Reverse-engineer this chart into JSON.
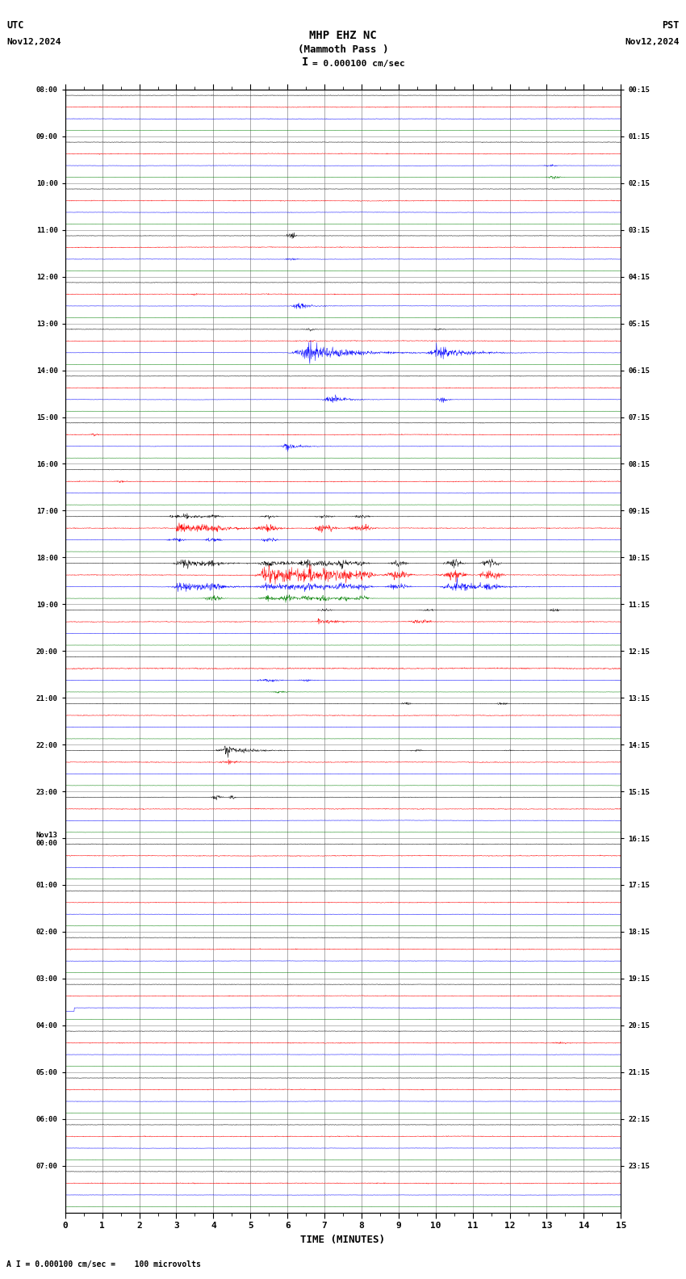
{
  "title_line1": "MHP EHZ NC",
  "title_line2": "(Mammoth Pass )",
  "scale_text": "= 0.000100 cm/sec",
  "utc_label": "UTC",
  "utc_date": "Nov12,2024",
  "pst_label": "PST",
  "pst_date": "Nov12,2024",
  "bottom_label": "TIME (MINUTES)",
  "bottom_note": "A I = 0.000100 cm/sec =    100 microvolts",
  "left_times": [
    "08:00",
    "09:00",
    "10:00",
    "11:00",
    "12:00",
    "13:00",
    "14:00",
    "15:00",
    "16:00",
    "17:00",
    "18:00",
    "19:00",
    "20:00",
    "21:00",
    "22:00",
    "23:00",
    "Nov13\n00:00",
    "01:00",
    "02:00",
    "03:00",
    "04:00",
    "05:00",
    "06:00",
    "07:00"
  ],
  "right_times": [
    "00:15",
    "01:15",
    "02:15",
    "03:15",
    "04:15",
    "05:15",
    "06:15",
    "07:15",
    "08:15",
    "09:15",
    "10:15",
    "11:15",
    "12:15",
    "13:15",
    "14:15",
    "15:15",
    "16:15",
    "17:15",
    "18:15",
    "19:15",
    "20:15",
    "21:15",
    "22:15",
    "23:15"
  ],
  "n_rows": 24,
  "n_traces_per_row": 4,
  "colors": [
    "black",
    "red",
    "blue",
    "green"
  ],
  "x_min": 0,
  "x_max": 15,
  "x_ticks": [
    0,
    1,
    2,
    3,
    4,
    5,
    6,
    7,
    8,
    9,
    10,
    11,
    12,
    13,
    14,
    15
  ],
  "bg_color": "white",
  "grid_color": "#888888",
  "fig_width": 8.5,
  "fig_height": 15.84,
  "dpi": 100
}
